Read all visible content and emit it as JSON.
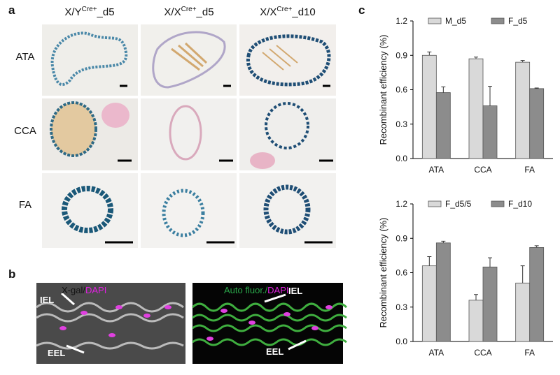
{
  "panel_a": {
    "label": "a",
    "columns": [
      {
        "base": "X/Y",
        "sup": "Cre+",
        "suffix": "_d5"
      },
      {
        "base": "X/X",
        "sup": "Cre+",
        "suffix": "_d5"
      },
      {
        "base": "X/X",
        "sup": "Cre+",
        "suffix": "_d10"
      }
    ],
    "rows": [
      "ATA",
      "CCA",
      "FA"
    ]
  },
  "panel_b": {
    "label": "b",
    "left_title": [
      "X-gal/",
      "DAPI"
    ],
    "right_title": [
      "Auto fluor./",
      "DAPI"
    ],
    "left_arrows": [
      "IEL",
      "EEL"
    ],
    "right_arrows": [
      "IEL",
      "EEL"
    ]
  },
  "panel_c": {
    "label": "c"
  },
  "chart_data": [
    {
      "type": "bar",
      "y_label": "Recombinant efficiency (%)",
      "categories": [
        "ATA",
        "CCA",
        "FA"
      ],
      "series": [
        {
          "name": "M_d5",
          "color": "#d9d9d9",
          "values": [
            0.9,
            0.87,
            0.84
          ],
          "errors": [
            0.03,
            0.015,
            0.015
          ]
        },
        {
          "name": "F_d5",
          "color": "#8c8c8c",
          "values": [
            0.575,
            0.46,
            0.61
          ],
          "errors": [
            0.05,
            0.17,
            0.005
          ]
        }
      ],
      "ylim": [
        0,
        1.2
      ],
      "yticks": [
        {
          "value": 0,
          "label": "0.0"
        },
        0.3,
        0.6,
        0.9,
        1.2
      ]
    },
    {
      "type": "bar",
      "y_label": "Recombinant efficiency (%)",
      "categories": [
        "ATA",
        "CCA",
        "FA"
      ],
      "series": [
        {
          "name": "F_d5/5",
          "color": "#d9d9d9",
          "values": [
            0.66,
            0.36,
            0.51
          ],
          "errors": [
            0.08,
            0.05,
            0.15
          ]
        },
        {
          "name": "F_d10",
          "color": "#8c8c8c",
          "values": [
            0.86,
            0.65,
            0.82
          ],
          "errors": [
            0.015,
            0.08,
            0.015
          ]
        }
      ],
      "ylim": [
        0,
        1.2
      ],
      "yticks": [
        {
          "value": 0,
          "label": "0.0"
        },
        0.3,
        0.6,
        0.9,
        1.2
      ]
    }
  ]
}
